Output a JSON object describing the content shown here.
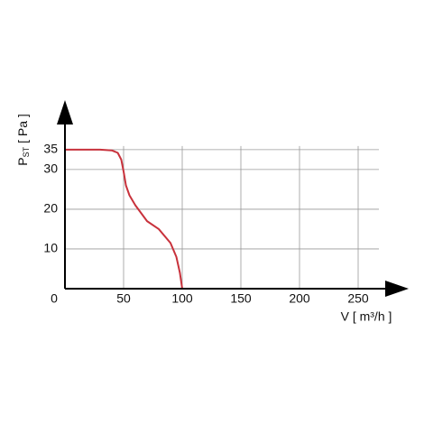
{
  "chart_data": {
    "type": "line",
    "x_label": "V [ m³/h ]",
    "y_label": {
      "main": "P",
      "sub": "ST",
      "unit": "[ Pa ]"
    },
    "x": [
      0,
      10,
      20,
      30,
      40,
      45,
      48,
      50,
      52,
      55,
      60,
      70,
      80,
      90,
      95,
      98,
      100
    ],
    "series": [
      {
        "color": "#c8323c",
        "values": [
          35,
          35,
          35,
          35,
          34.8,
          34.2,
          32.5,
          29.5,
          26,
          23.5,
          21,
          17,
          15,
          11.5,
          8,
          4,
          0
        ]
      }
    ],
    "xlim": [
      0,
      290
    ],
    "ylim": [
      0,
      47
    ],
    "xticks": [
      0,
      50,
      100,
      150,
      200,
      250
    ],
    "yticks": [
      10,
      20,
      30,
      35
    ],
    "grid": true
  }
}
